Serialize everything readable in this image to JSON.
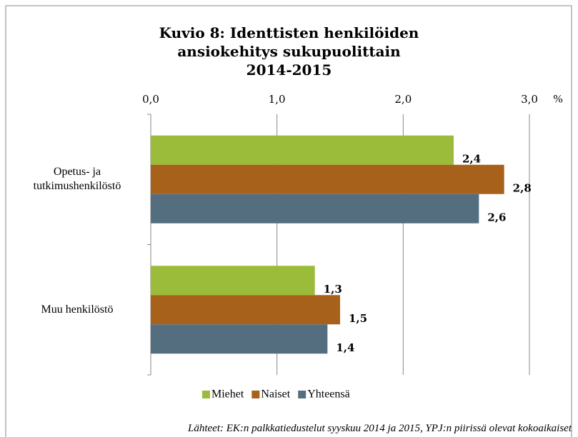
{
  "chart_data": {
    "type": "barh",
    "title": "Kuvio 8: Identtisten henkilöiden\nansiokehitys sukupuolittain\n2014-2015",
    "x_unit": "%",
    "categories": [
      "Opetus- ja\ntutkimushenkilöstö",
      "Muu henkilöstö"
    ],
    "series": [
      {
        "name": "Miehet",
        "color": "#9bbb3b",
        "values": [
          2.4,
          1.3
        ],
        "value_labels": [
          "2,4",
          "1,3"
        ]
      },
      {
        "name": "Naiset",
        "color": "#a8611a",
        "values": [
          2.8,
          1.5
        ],
        "value_labels": [
          "2,8",
          "1,5"
        ]
      },
      {
        "name": "Yhteensä",
        "color": "#546e80",
        "values": [
          2.6,
          1.4
        ],
        "value_labels": [
          "2,6",
          "1,4"
        ]
      }
    ],
    "xlim": [
      0,
      3
    ],
    "xticks": [
      {
        "value": 0,
        "label": "0,0"
      },
      {
        "value": 1,
        "label": "1,0"
      },
      {
        "value": 2,
        "label": "2,0"
      },
      {
        "value": 3,
        "label": "3,0"
      }
    ],
    "grid": true,
    "legend": "bottom",
    "source": "Lähteet: EK:n palkkatiedustelut syyskuu 2014 ja 2015, YPJ:n piirissä olevat kokoaikaiset"
  }
}
